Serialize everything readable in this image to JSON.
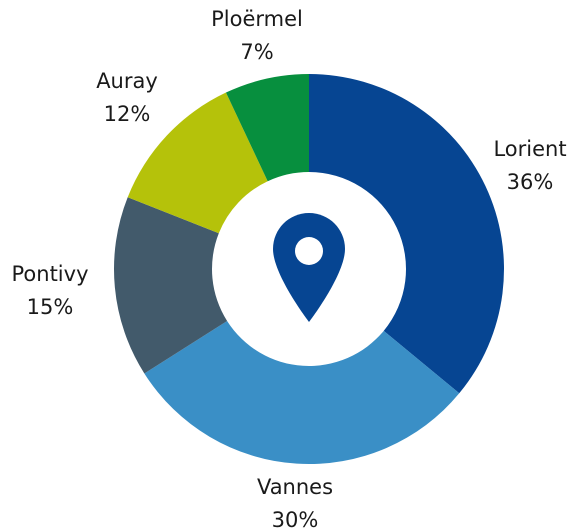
{
  "chart_data": {
    "type": "donut",
    "categories": [
      "Lorient",
      "Vannes",
      "Pontivy",
      "Auray",
      "Ploërmel"
    ],
    "values": [
      36,
      30,
      15,
      12,
      7
    ],
    "value_labels": [
      "36%",
      "30%",
      "15%",
      "12%",
      "7%"
    ],
    "colors": [
      "#064592",
      "#3a8fc6",
      "#425a6b",
      "#b5c20a",
      "#078f3e"
    ]
  }
}
